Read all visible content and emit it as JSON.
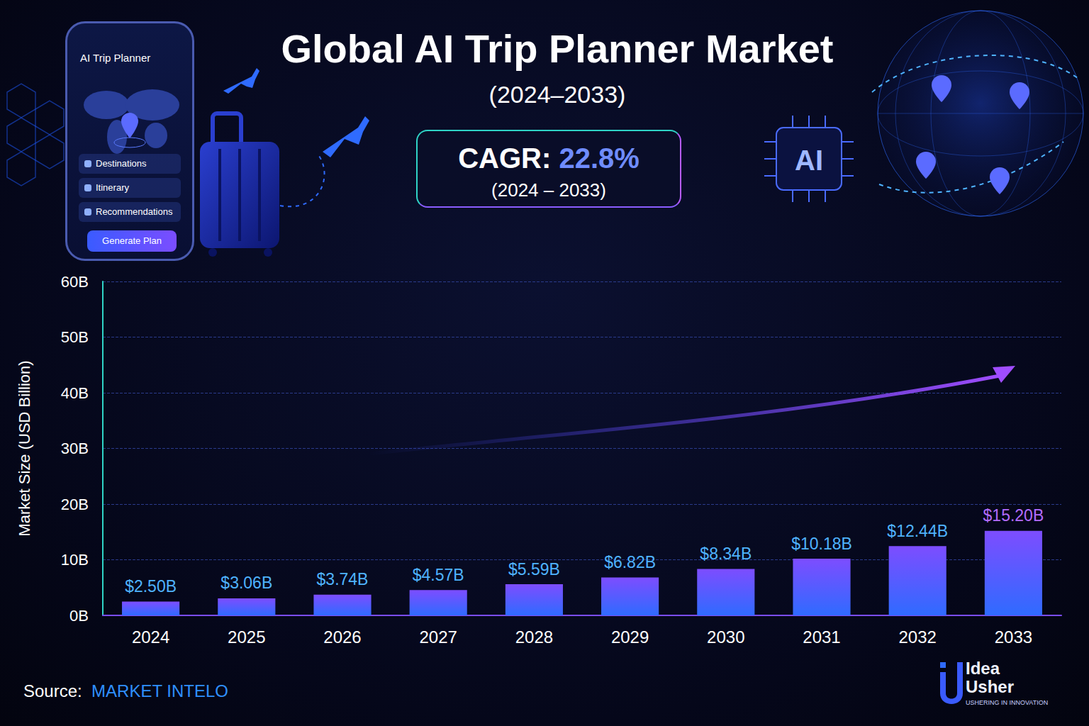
{
  "chart_data": {
    "type": "bar",
    "title": "Global AI Trip Planner Market",
    "subtitle": "(2024–2033)",
    "y_label": "Market Size (USD Billion)",
    "categories": [
      "2024",
      "2025",
      "2026",
      "2027",
      "2028",
      "2029",
      "2030",
      "2031",
      "2032",
      "2033"
    ],
    "values": [
      2.5,
      3.06,
      3.74,
      4.57,
      5.59,
      6.82,
      8.34,
      10.18,
      12.44,
      15.2
    ],
    "value_labels": [
      "$2.50B",
      "$3.06B",
      "$3.74B",
      "$4.57B",
      "$5.59B",
      "$6.82B",
      "$8.34B",
      "$10.18B",
      "$12.44B",
      "$15.20B"
    ],
    "color": "#7d4dff",
    "ylim": [
      0,
      60
    ],
    "yticks": [
      {
        "value": 0,
        "label": "0B"
      },
      {
        "value": 10,
        "label": "10B"
      },
      {
        "value": 20,
        "label": "20B"
      },
      {
        "value": 30,
        "label": "30B"
      },
      {
        "value": 40,
        "label": "40B"
      },
      {
        "value": 50,
        "label": "50B"
      },
      {
        "value": 60,
        "label": "60B"
      }
    ],
    "grid": true,
    "data_labels": true
  },
  "page": {
    "cagr": {
      "label": "CAGR:",
      "value": "22.8%",
      "period": "(2024 – 2033)"
    },
    "source": {
      "label": "Source:",
      "name": "MARKET INTELO"
    },
    "logo": {
      "name": "Idea Usher",
      "tagline": "USHERING IN INNOVATION"
    },
    "phone": {
      "title": "AI Trip Planner",
      "menu": [
        "Destinations",
        "Itinerary",
        "Recommendations"
      ],
      "button": "Generate Plan"
    },
    "chip": "AI"
  }
}
